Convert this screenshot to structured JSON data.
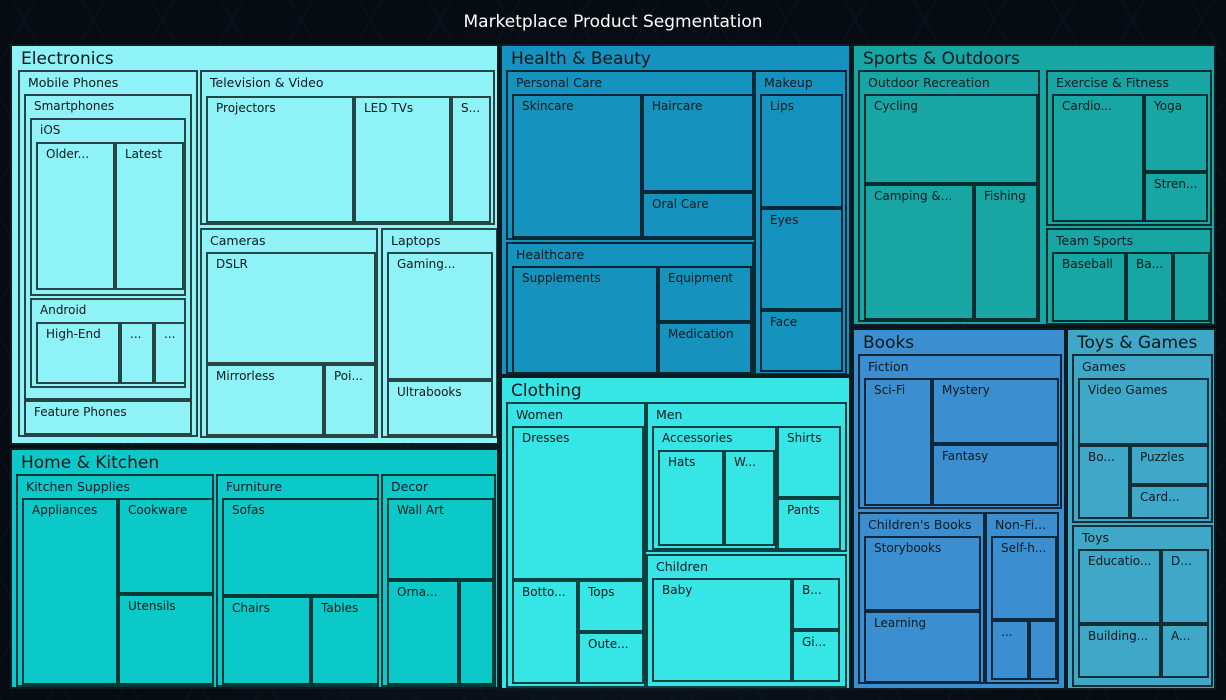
{
  "chart_data": {
    "type": "treemap",
    "title": "Marketplace Product Segmentation",
    "root": [
      {
        "name": "Electronics",
        "color": "#8ff2f6",
        "children": [
          {
            "name": "Mobile Phones",
            "children": [
              {
                "name": "Smartphones",
                "children": [
                  {
                    "name": "iOS",
                    "children": [
                      {
                        "name": "Older...",
                        "value": 1.87
                      },
                      {
                        "name": "Latest",
                        "value": 1.7
                      }
                    ]
                  },
                  {
                    "name": "Android",
                    "children": [
                      {
                        "name": "High-End",
                        "value": 1.05
                      },
                      {
                        "name": "...",
                        "value": 0.4
                      },
                      {
                        "name": "...",
                        "value": 0.4
                      }
                    ]
                  }
                ]
              },
              {
                "name": "Feature Phones",
                "value": 1.6
              }
            ]
          },
          {
            "name": "Television & Video",
            "children": [
              {
                "name": "Projectors",
                "value": 2.7
              },
              {
                "name": "LED TVs",
                "value": 1.8
              },
              {
                "name": "S...",
                "value": 0.8
              }
            ]
          },
          {
            "name": "Cameras",
            "children": [
              {
                "name": "DSLR",
                "value": 3.4
              },
              {
                "name": "Mirrorless",
                "value": 1.4
              },
              {
                "name": "Poi...",
                "value": 0.65
              }
            ]
          },
          {
            "name": "Laptops",
            "children": [
              {
                "name": "Gaming...",
                "value": 1.75
              },
              {
                "name": "Ultrabooks",
                "value": 1.4
              }
            ]
          }
        ]
      },
      {
        "name": "Home & Kitchen",
        "color": "#0cc9c9",
        "children": [
          {
            "name": "Kitchen Supplies",
            "children": [
              {
                "name": "Appliances",
                "value": 2.7
              },
              {
                "name": "Cookware",
                "value": 1.35
              },
              {
                "name": "Utensils",
                "value": 1.35
              }
            ]
          },
          {
            "name": "Furniture",
            "children": [
              {
                "name": "Sofas",
                "value": 2.2
              },
              {
                "name": "Chairs",
                "value": 1.25
              },
              {
                "name": "Tables",
                "value": 1.0
              }
            ]
          },
          {
            "name": "Decor",
            "children": [
              {
                "name": "Wall Art",
                "value": 1.45
              },
              {
                "name": "Orna...",
                "value": 1.05
              },
              {
                "name": "",
                "value": 0.55
              }
            ]
          }
        ]
      },
      {
        "name": "Health & Beauty",
        "color": "#1692be",
        "children": [
          {
            "name": "Personal Care",
            "children": [
              {
                "name": "Skincare",
                "value": 2.2
              },
              {
                "name": "Haircare",
                "value": 1.05
              },
              {
                "name": "Oral Care",
                "value": 0.45
              }
            ]
          },
          {
            "name": "Healthcare",
            "children": [
              {
                "name": "Supplements",
                "value": 1.75
              },
              {
                "name": "Equipment",
                "value": 0.6
              },
              {
                "name": "Medication",
                "value": 0.55
              }
            ]
          },
          {
            "name": "Makeup",
            "children": [
              {
                "name": "Lips",
                "value": 0.9
              },
              {
                "name": "Eyes",
                "value": 0.8
              },
              {
                "name": "Face",
                "value": 0.45
              }
            ]
          }
        ]
      },
      {
        "name": "Clothing",
        "color": "#36e6e6",
        "children": [
          {
            "name": "Women",
            "children": [
              {
                "name": "Dresses",
                "value": 2.4
              },
              {
                "name": "Botto...",
                "value": 0.75
              },
              {
                "name": "Tops",
                "value": 0.35
              },
              {
                "name": "Oute...",
                "value": 0.35
              }
            ]
          },
          {
            "name": "Men",
            "children": [
              {
                "name": "Accessories",
                "children": [
                  {
                    "name": "Hats",
                    "value": 0.5
                  },
                  {
                    "name": "W...",
                    "value": 0.4
                  }
                ]
              },
              {
                "name": "Shirts",
                "value": 0.45
              },
              {
                "name": "Pants",
                "value": 0.35
              }
            ]
          },
          {
            "name": "Children",
            "children": [
              {
                "name": "Baby",
                "value": 1.5
              },
              {
                "name": "B...",
                "value": 0.22
              },
              {
                "name": "Gi...",
                "value": 0.22
              }
            ]
          }
        ]
      },
      {
        "name": "Sports & Outdoors",
        "color": "#17a6a4",
        "children": [
          {
            "name": "Outdoor Recreation",
            "children": [
              {
                "name": "Cycling",
                "value": 1.6
              },
              {
                "name": "Camping &...",
                "value": 1.5
              },
              {
                "name": "Fishing",
                "value": 0.95
              }
            ]
          },
          {
            "name": "Exercise & Fitness",
            "children": [
              {
                "name": "Cardio...",
                "value": 1.0
              },
              {
                "name": "Yoga",
                "value": 0.45
              },
              {
                "name": "Stren...",
                "value": 0.3
              }
            ]
          },
          {
            "name": "Team Sports",
            "children": [
              {
                "name": "Baseball",
                "value": 0.6
              },
              {
                "name": "Ba...",
                "value": 0.4
              },
              {
                "name": "",
                "value": 0.2
              }
            ]
          }
        ]
      },
      {
        "name": "Books",
        "color": "#3b8fd0",
        "children": [
          {
            "name": "Fiction",
            "children": [
              {
                "name": "Sci-Fi",
                "value": 0.75
              },
              {
                "name": "Mystery",
                "value": 0.65
              },
              {
                "name": "Fantasy",
                "value": 0.65
              }
            ]
          },
          {
            "name": "Children's Books",
            "children": [
              {
                "name": "Storybooks",
                "value": 0.85
              },
              {
                "name": "Learning",
                "value": 0.75
              }
            ]
          },
          {
            "name": "Non-Fi...",
            "children": [
              {
                "name": "Self-h...",
                "value": 0.45
              },
              {
                "name": "...",
                "value": 0.27
              },
              {
                "name": "",
                "value": 0.2
              }
            ]
          }
        ]
      },
      {
        "name": "Toys & Games",
        "color": "#3fa8c8",
        "children": [
          {
            "name": "Games",
            "children": [
              {
                "name": "Video Games",
                "value": 0.65
              },
              {
                "name": "Bo...",
                "value": 0.35
              },
              {
                "name": "Puzzles",
                "value": 0.3
              },
              {
                "name": "Card...",
                "value": 0.3
              }
            ]
          },
          {
            "name": "Toys",
            "children": [
              {
                "name": "Educatio...",
                "value": 0.55
              },
              {
                "name": "D...",
                "value": 0.27
              },
              {
                "name": "Building...",
                "value": 0.45
              },
              {
                "name": "A...",
                "value": 0.2
              }
            ]
          }
        ]
      }
    ]
  }
}
